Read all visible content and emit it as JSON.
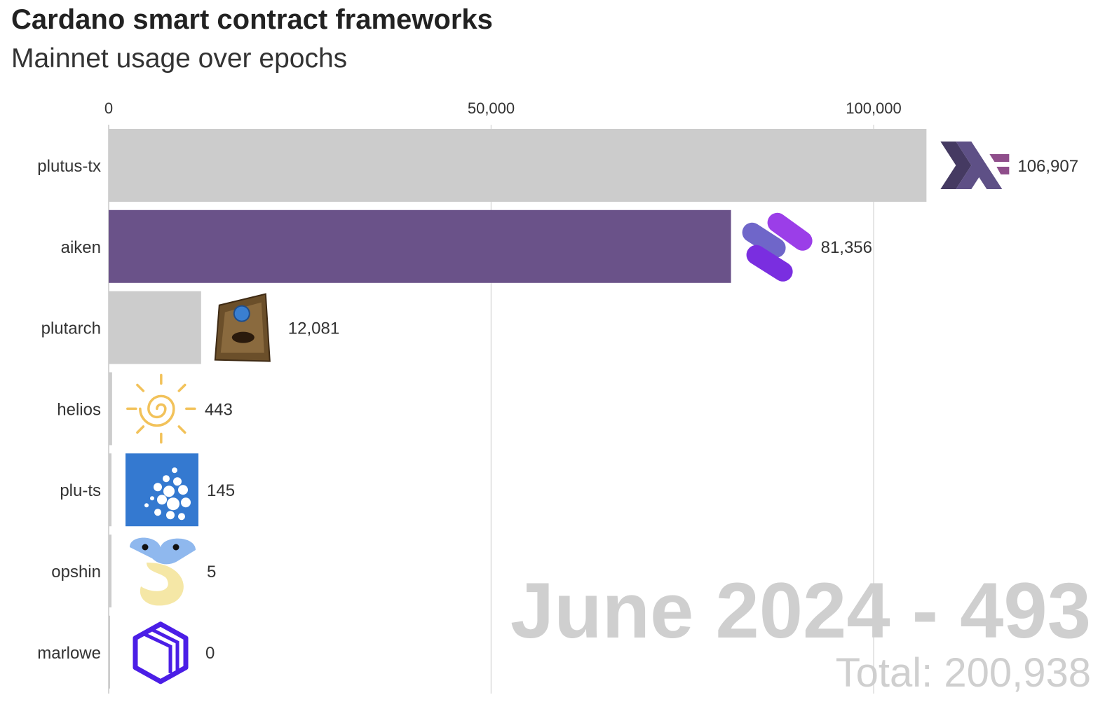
{
  "title": "Cardano smart contract frameworks",
  "subtitle": "Mainnet usage over epochs",
  "colors": {
    "default_bar": "#cccccc",
    "highlight_bar": "#6a5289",
    "gridline": "#dddddd",
    "overlay_text": "#cfcfcf"
  },
  "chart_data": {
    "type": "bar",
    "orientation": "horizontal",
    "title": "Cardano smart contract frameworks",
    "subtitle": "Mainnet usage over epochs",
    "categories": [
      "plutus-tx",
      "aiken",
      "plutarch",
      "helios",
      "plu-ts",
      "opshin",
      "marlowe"
    ],
    "values": [
      106907,
      81356,
      12081,
      443,
      145,
      5,
      0
    ],
    "value_labels": [
      "106,907",
      "81,356",
      "12,081",
      "443",
      "145",
      "5",
      "0"
    ],
    "highlighted": "aiken",
    "icons": [
      "haskell-logo-icon",
      "aiken-logo-icon",
      "plutarch-book-icon",
      "helios-sun-icon",
      "plu-ts-cardano-icon",
      "opshin-snake-icon",
      "marlowe-cube-icon"
    ],
    "xlim": [
      0,
      110000
    ],
    "xticks": [
      0,
      50000,
      100000
    ],
    "xtick_labels": [
      "0",
      "50,000",
      "100,000"
    ],
    "xaxis_position": "top",
    "grid": true,
    "overlay_period": "June 2024 - 493",
    "overlay_total": "Total: 200,938"
  }
}
